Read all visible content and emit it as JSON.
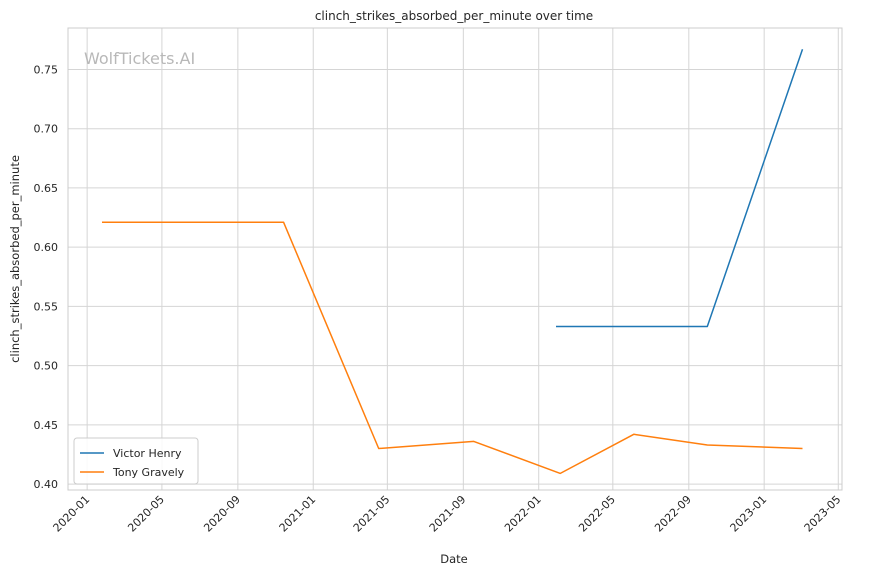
{
  "chart_data": {
    "type": "line",
    "title": "clinch_strikes_absorbed_per_minute over time",
    "xlabel": "Date",
    "ylabel": "clinch_strikes_absorbed_per_minute",
    "watermark": "WolfTickets.AI",
    "xlim": [
      "2019-12-01",
      "2023-05-07"
    ],
    "ylim": [
      0.395,
      0.785
    ],
    "x_ticks": [
      "2020-01",
      "2020-05",
      "2020-09",
      "2021-01",
      "2021-05",
      "2021-09",
      "2022-01",
      "2022-05",
      "2022-09",
      "2023-01",
      "2023-05"
    ],
    "y_ticks": [
      "0.40",
      "0.45",
      "0.50",
      "0.55",
      "0.60",
      "0.65",
      "0.70",
      "0.75"
    ],
    "grid": true,
    "legend_position": "lower-left",
    "series": [
      {
        "name": "Victor Henry",
        "color": "#1f77b4",
        "x": [
          "2022-01-29",
          "2022-10-01",
          "2023-03-04"
        ],
        "y": [
          0.533,
          0.533,
          0.767
        ]
      },
      {
        "name": "Tony Gravely",
        "color": "#ff7f0e",
        "x": [
          "2020-01-25",
          "2020-11-14",
          "2021-04-17",
          "2021-09-18",
          "2022-02-05",
          "2022-06-04",
          "2022-10-01",
          "2023-03-04"
        ],
        "y": [
          0.621,
          0.621,
          0.43,
          0.436,
          0.409,
          0.442,
          0.433,
          0.43
        ]
      }
    ]
  }
}
